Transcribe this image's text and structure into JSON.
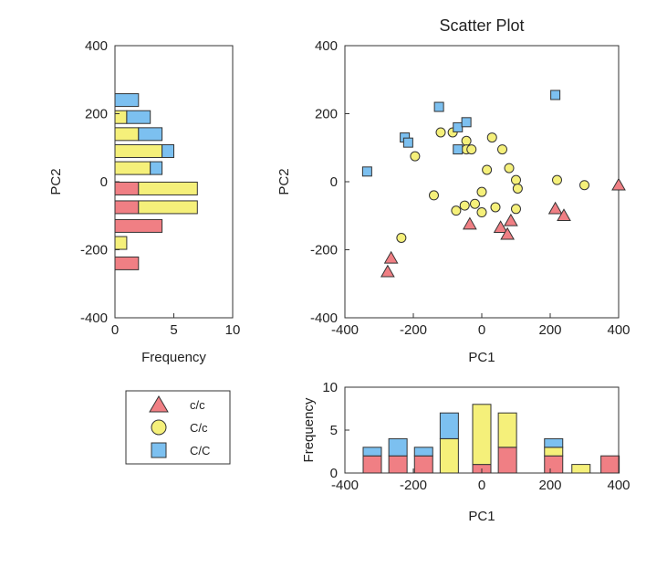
{
  "colors": {
    "c_c": "#f07f84",
    "C_c": "#f5f07a",
    "C_C": "#7cc0f0",
    "edge": "#333333"
  },
  "legend": {
    "entries": [
      {
        "key": "c_c",
        "label": "c/c",
        "marker": "triangle"
      },
      {
        "key": "C_c",
        "label": "C/c",
        "marker": "circle"
      },
      {
        "key": "C_C",
        "label": "C/C",
        "marker": "square"
      }
    ]
  },
  "chart_data": [
    {
      "id": "scatter",
      "type": "scatter",
      "title": "Scatter Plot",
      "xlabel": "PC1",
      "ylabel": "PC2",
      "xlim": [
        -400,
        400
      ],
      "ylim": [
        -400,
        400
      ],
      "xticks": [
        -400,
        -200,
        0,
        200,
        400
      ],
      "yticks": [
        -400,
        -200,
        0,
        200,
        400
      ],
      "xtick_labels": [
        "-400",
        "-200",
        "0",
        "200",
        "400"
      ],
      "ytick_labels": [
        "-400",
        "-200",
        "0",
        "200",
        "400"
      ],
      "series": [
        {
          "name": "c/c",
          "key": "c_c",
          "marker": "triangle",
          "points": [
            [
              -275,
              -265
            ],
            [
              -265,
              -225
            ],
            [
              -35,
              -125
            ],
            [
              55,
              -135
            ],
            [
              75,
              -155
            ],
            [
              85,
              -115
            ],
            [
              215,
              -80
            ],
            [
              240,
              -100
            ],
            [
              400,
              -10
            ]
          ]
        },
        {
          "name": "C/c",
          "key": "C_c",
          "marker": "circle",
          "points": [
            [
              -195,
              75
            ],
            [
              -120,
              145
            ],
            [
              -85,
              145
            ],
            [
              -45,
              120
            ],
            [
              -45,
              95
            ],
            [
              -30,
              95
            ],
            [
              30,
              130
            ],
            [
              60,
              95
            ],
            [
              15,
              35
            ],
            [
              80,
              40
            ],
            [
              100,
              5
            ],
            [
              105,
              -20
            ],
            [
              220,
              5
            ],
            [
              300,
              -10
            ],
            [
              -140,
              -40
            ],
            [
              -75,
              -85
            ],
            [
              -50,
              -70
            ],
            [
              -20,
              -65
            ],
            [
              0,
              -30
            ],
            [
              0,
              -90
            ],
            [
              40,
              -75
            ],
            [
              100,
              -80
            ],
            [
              -235,
              -165
            ]
          ]
        },
        {
          "name": "C/C",
          "key": "C_C",
          "marker": "square",
          "points": [
            [
              -335,
              30
            ],
            [
              -225,
              130
            ],
            [
              -215,
              115
            ],
            [
              -125,
              220
            ],
            [
              -70,
              160
            ],
            [
              -70,
              95
            ],
            [
              -45,
              175
            ],
            [
              215,
              255
            ]
          ]
        }
      ]
    },
    {
      "id": "hist_pc2",
      "type": "bar",
      "orientation": "horizontal",
      "stacked": true,
      "xlabel": "Frequency",
      "ylabel": "PC2",
      "xlim": [
        0,
        10
      ],
      "ylim": [
        -400,
        400
      ],
      "xticks": [
        0,
        5,
        10
      ],
      "yticks": [
        -400,
        -200,
        0,
        200,
        400
      ],
      "xtick_labels": [
        "0",
        "5",
        "10"
      ],
      "ytick_labels": [
        "-400",
        "-200",
        "0",
        "200",
        "400"
      ],
      "bin_centers": [
        240,
        190,
        140,
        90,
        40,
        -20,
        -75,
        -130,
        -180,
        -240
      ],
      "series": [
        {
          "name": "c/c",
          "key": "c_c",
          "values": [
            0,
            0,
            0,
            0,
            0,
            2,
            2,
            4,
            0,
            2
          ]
        },
        {
          "name": "C/c",
          "key": "C_c",
          "values": [
            0,
            1,
            2,
            4,
            3,
            5,
            5,
            0,
            1,
            0
          ]
        },
        {
          "name": "C/C",
          "key": "C_C",
          "values": [
            2,
            2,
            2,
            1,
            1,
            0,
            0,
            0,
            0,
            0
          ]
        }
      ]
    },
    {
      "id": "hist_pc1",
      "type": "bar",
      "orientation": "vertical",
      "stacked": true,
      "xlabel": "PC1",
      "ylabel": "Frequency",
      "xlim": [
        -400,
        400
      ],
      "ylim": [
        0,
        10
      ],
      "xticks": [
        -400,
        -200,
        0,
        200,
        400
      ],
      "yticks": [
        0,
        5,
        10
      ],
      "xtick_labels": [
        "-400",
        "-200",
        "0",
        "200",
        "400"
      ],
      "ytick_labels": [
        "0",
        "5",
        "10"
      ],
      "bin_centers": [
        -320,
        -245,
        -170,
        -95,
        0,
        75,
        210,
        290,
        375
      ],
      "series": [
        {
          "name": "c/c",
          "key": "c_c",
          "values": [
            2,
            2,
            2,
            0,
            1,
            3,
            2,
            0,
            2
          ]
        },
        {
          "name": "C/c",
          "key": "C_c",
          "values": [
            0,
            0,
            0,
            4,
            7,
            4,
            1,
            1,
            0
          ]
        },
        {
          "name": "C/C",
          "key": "C_C",
          "values": [
            1,
            2,
            1,
            3,
            0,
            0,
            1,
            0,
            0
          ]
        }
      ]
    }
  ]
}
